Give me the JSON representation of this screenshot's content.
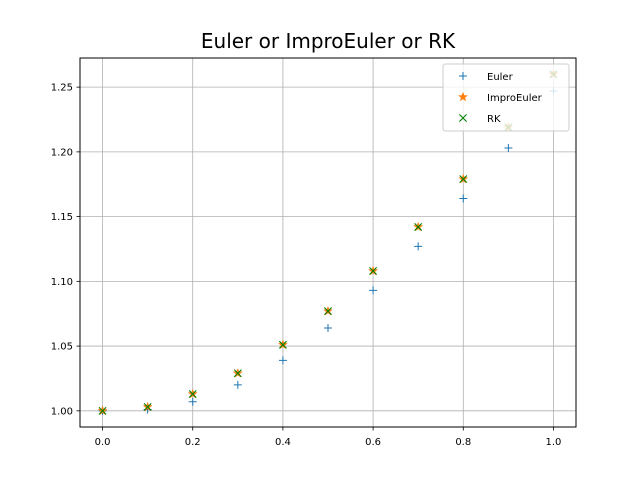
{
  "chart_data": {
    "type": "scatter",
    "title": "Euler or ImproEuler or RK",
    "xlabel": "",
    "ylabel": "",
    "xlim": [
      -0.05,
      1.05
    ],
    "ylim": [
      0.9875,
      1.2725
    ],
    "xticks": [
      0.0,
      0.2,
      0.4,
      0.6,
      0.8,
      1.0
    ],
    "xtick_labels": [
      "0.0",
      "0.2",
      "0.4",
      "0.6",
      "0.8",
      "1.0"
    ],
    "yticks": [
      1.0,
      1.05,
      1.1,
      1.15,
      1.2,
      1.25
    ],
    "ytick_labels": [
      "1.00",
      "1.05",
      "1.10",
      "1.15",
      "1.20",
      "1.25"
    ],
    "grid": true,
    "legend_position": "top-right",
    "x": [
      0.0,
      0.1,
      0.2,
      0.3,
      0.4,
      0.5,
      0.6,
      0.7,
      0.8,
      0.9,
      1.0
    ],
    "series": [
      {
        "name": "Euler",
        "marker": "plus",
        "color": "#1f77b4",
        "values": [
          1.0,
          1.001,
          1.007,
          1.02,
          1.039,
          1.064,
          1.093,
          1.127,
          1.164,
          1.203,
          1.247
        ]
      },
      {
        "name": "ImproEuler",
        "marker": "star",
        "color": "#ff7f0e",
        "values": [
          1.0,
          1.003,
          1.013,
          1.029,
          1.051,
          1.077,
          1.108,
          1.142,
          1.179,
          1.219,
          1.26
        ]
      },
      {
        "name": "RK",
        "marker": "x",
        "color": "#008000",
        "values": [
          1.0,
          1.003,
          1.013,
          1.029,
          1.051,
          1.077,
          1.108,
          1.142,
          1.179,
          1.219,
          1.26
        ]
      }
    ]
  }
}
